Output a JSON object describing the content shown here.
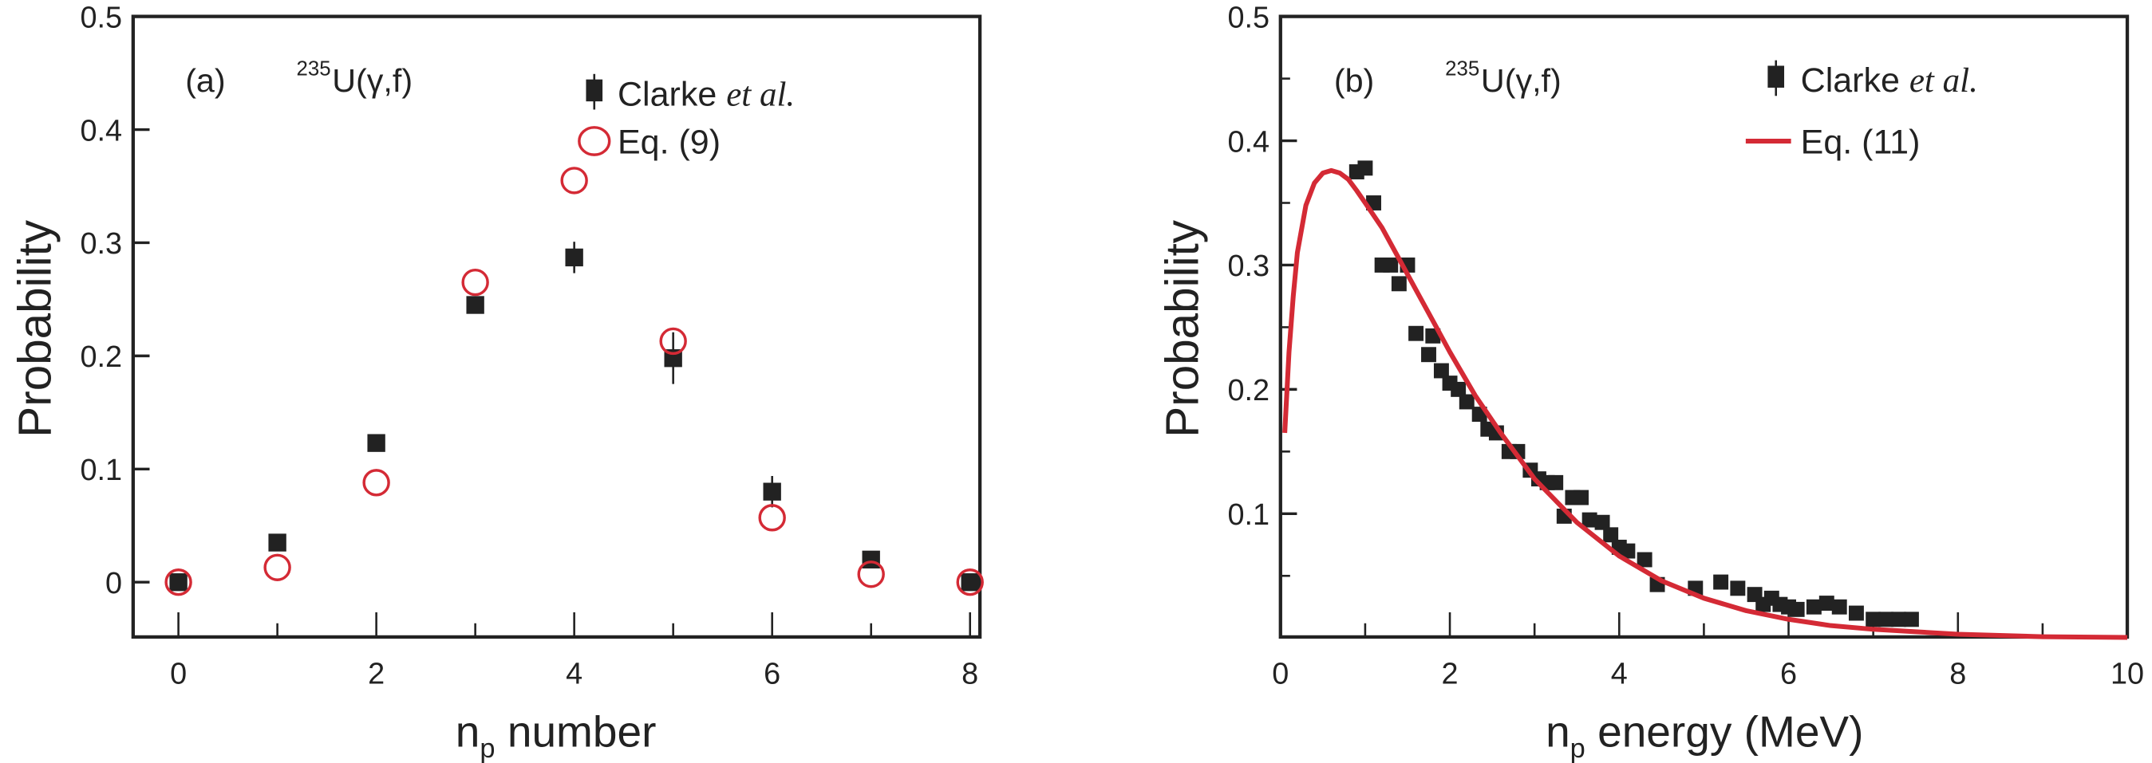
{
  "colors": {
    "data": "#222222",
    "model": "#d42a35",
    "axis": "#222222"
  },
  "chart_data": [
    {
      "type": "scatter",
      "panel_label": "(a)",
      "reaction": {
        "mass": "235",
        "text": "U(γ,f)"
      },
      "xlabel": {
        "main": "n",
        "sub": "p",
        "rest": " number"
      },
      "ylabel": "Probability",
      "xlim": [
        -0.45,
        8.1
      ],
      "ylim": [
        -0.05,
        0.5
      ],
      "xticks": [
        0,
        2,
        4,
        6,
        8
      ],
      "yticks": [
        0,
        0.1,
        0.2,
        0.3,
        0.4,
        0.5
      ],
      "ytick_labels": [
        "0",
        "0.1",
        "0.2",
        "0.3",
        "0.4",
        "0.5"
      ],
      "legend": {
        "position": "top-right",
        "entries": [
          {
            "label": "Clarke ",
            "label_italic": "et al.",
            "marker": "filled-square-errorbar"
          },
          {
            "label": "Eq. (9)",
            "marker": "open-circle"
          }
        ]
      },
      "series": [
        {
          "name": "Clarke et al.",
          "x": [
            0,
            1,
            2,
            3,
            4,
            5,
            6,
            7,
            8
          ],
          "y": [
            0.0,
            0.035,
            0.123,
            0.245,
            0.287,
            0.198,
            0.08,
            0.02,
            0.0
          ],
          "err": [
            0,
            0,
            0,
            0,
            0.006,
            0.015,
            0.006,
            0,
            0
          ]
        },
        {
          "name": "Eq. (9)",
          "x": [
            0,
            1,
            2,
            3,
            4,
            5,
            6,
            7,
            8
          ],
          "y": [
            0.0,
            0.013,
            0.088,
            0.265,
            0.355,
            0.213,
            0.057,
            0.007,
            0.0
          ]
        }
      ]
    },
    {
      "type": "scatter",
      "panel_label": "(b)",
      "reaction": {
        "mass": "235",
        "text": "U(γ,f)"
      },
      "xlabel": {
        "main": "n",
        "sub": "p",
        "rest": " energy (MeV)"
      },
      "ylabel": "Probability",
      "xlim": [
        0,
        10
      ],
      "ylim": [
        0,
        0.5
      ],
      "xticks": [
        0,
        2,
        4,
        6,
        8,
        10
      ],
      "yticks": [
        0.1,
        0.2,
        0.3,
        0.4,
        0.5
      ],
      "ytick_labels": [
        "0.1",
        "0.2",
        "0.3",
        "0.4",
        "0.5"
      ],
      "legend": {
        "position": "top-right",
        "entries": [
          {
            "label": "Clarke ",
            "label_italic": "et al.",
            "marker": "filled-square-errorbar"
          },
          {
            "label": "Eq. (11)",
            "marker": "line"
          }
        ]
      },
      "series": [
        {
          "name": "Clarke et al.",
          "x": [
            0.9,
            1.0,
            1.1,
            1.2,
            1.3,
            1.4,
            1.5,
            1.6,
            1.75,
            1.8,
            1.9,
            2.0,
            2.1,
            2.2,
            2.35,
            2.45,
            2.55,
            2.7,
            2.8,
            2.95,
            3.05,
            3.15,
            3.25,
            3.35,
            3.45,
            3.55,
            3.65,
            3.8,
            3.9,
            4.0,
            4.1,
            4.3,
            4.45,
            4.9,
            5.2,
            5.4,
            5.6,
            5.7,
            5.8,
            5.9,
            6.0,
            6.1,
            6.3,
            6.45,
            6.6,
            6.8,
            7.0,
            7.15,
            7.3,
            7.45
          ],
          "y": [
            0.375,
            0.378,
            0.35,
            0.3,
            0.3,
            0.285,
            0.3,
            0.245,
            0.228,
            0.243,
            0.215,
            0.205,
            0.2,
            0.19,
            0.18,
            0.168,
            0.165,
            0.15,
            0.15,
            0.135,
            0.128,
            0.125,
            0.125,
            0.098,
            0.113,
            0.113,
            0.095,
            0.093,
            0.083,
            0.073,
            0.07,
            0.063,
            0.043,
            0.04,
            0.045,
            0.04,
            0.035,
            0.027,
            0.032,
            0.027,
            0.025,
            0.023,
            0.025,
            0.028,
            0.025,
            0.02,
            0.015,
            0.015,
            0.015,
            0.015
          ]
        },
        {
          "name": "Eq. (11)",
          "x": [
            0.05,
            0.1,
            0.15,
            0.2,
            0.3,
            0.4,
            0.5,
            0.6,
            0.7,
            0.8,
            0.9,
            1.0,
            1.2,
            1.4,
            1.6,
            1.8,
            2.0,
            2.3,
            2.6,
            3.0,
            3.5,
            4.0,
            4.5,
            5.0,
            5.5,
            6.0,
            6.5,
            7.0,
            7.5,
            8.0,
            9.0,
            10.0
          ],
          "y": [
            0.165,
            0.23,
            0.275,
            0.31,
            0.348,
            0.366,
            0.374,
            0.376,
            0.374,
            0.369,
            0.36,
            0.35,
            0.33,
            0.305,
            0.28,
            0.255,
            0.23,
            0.195,
            0.165,
            0.128,
            0.093,
            0.066,
            0.046,
            0.032,
            0.022,
            0.015,
            0.01,
            0.007,
            0.005,
            0.003,
            0.001,
            0.0005
          ]
        }
      ]
    }
  ]
}
